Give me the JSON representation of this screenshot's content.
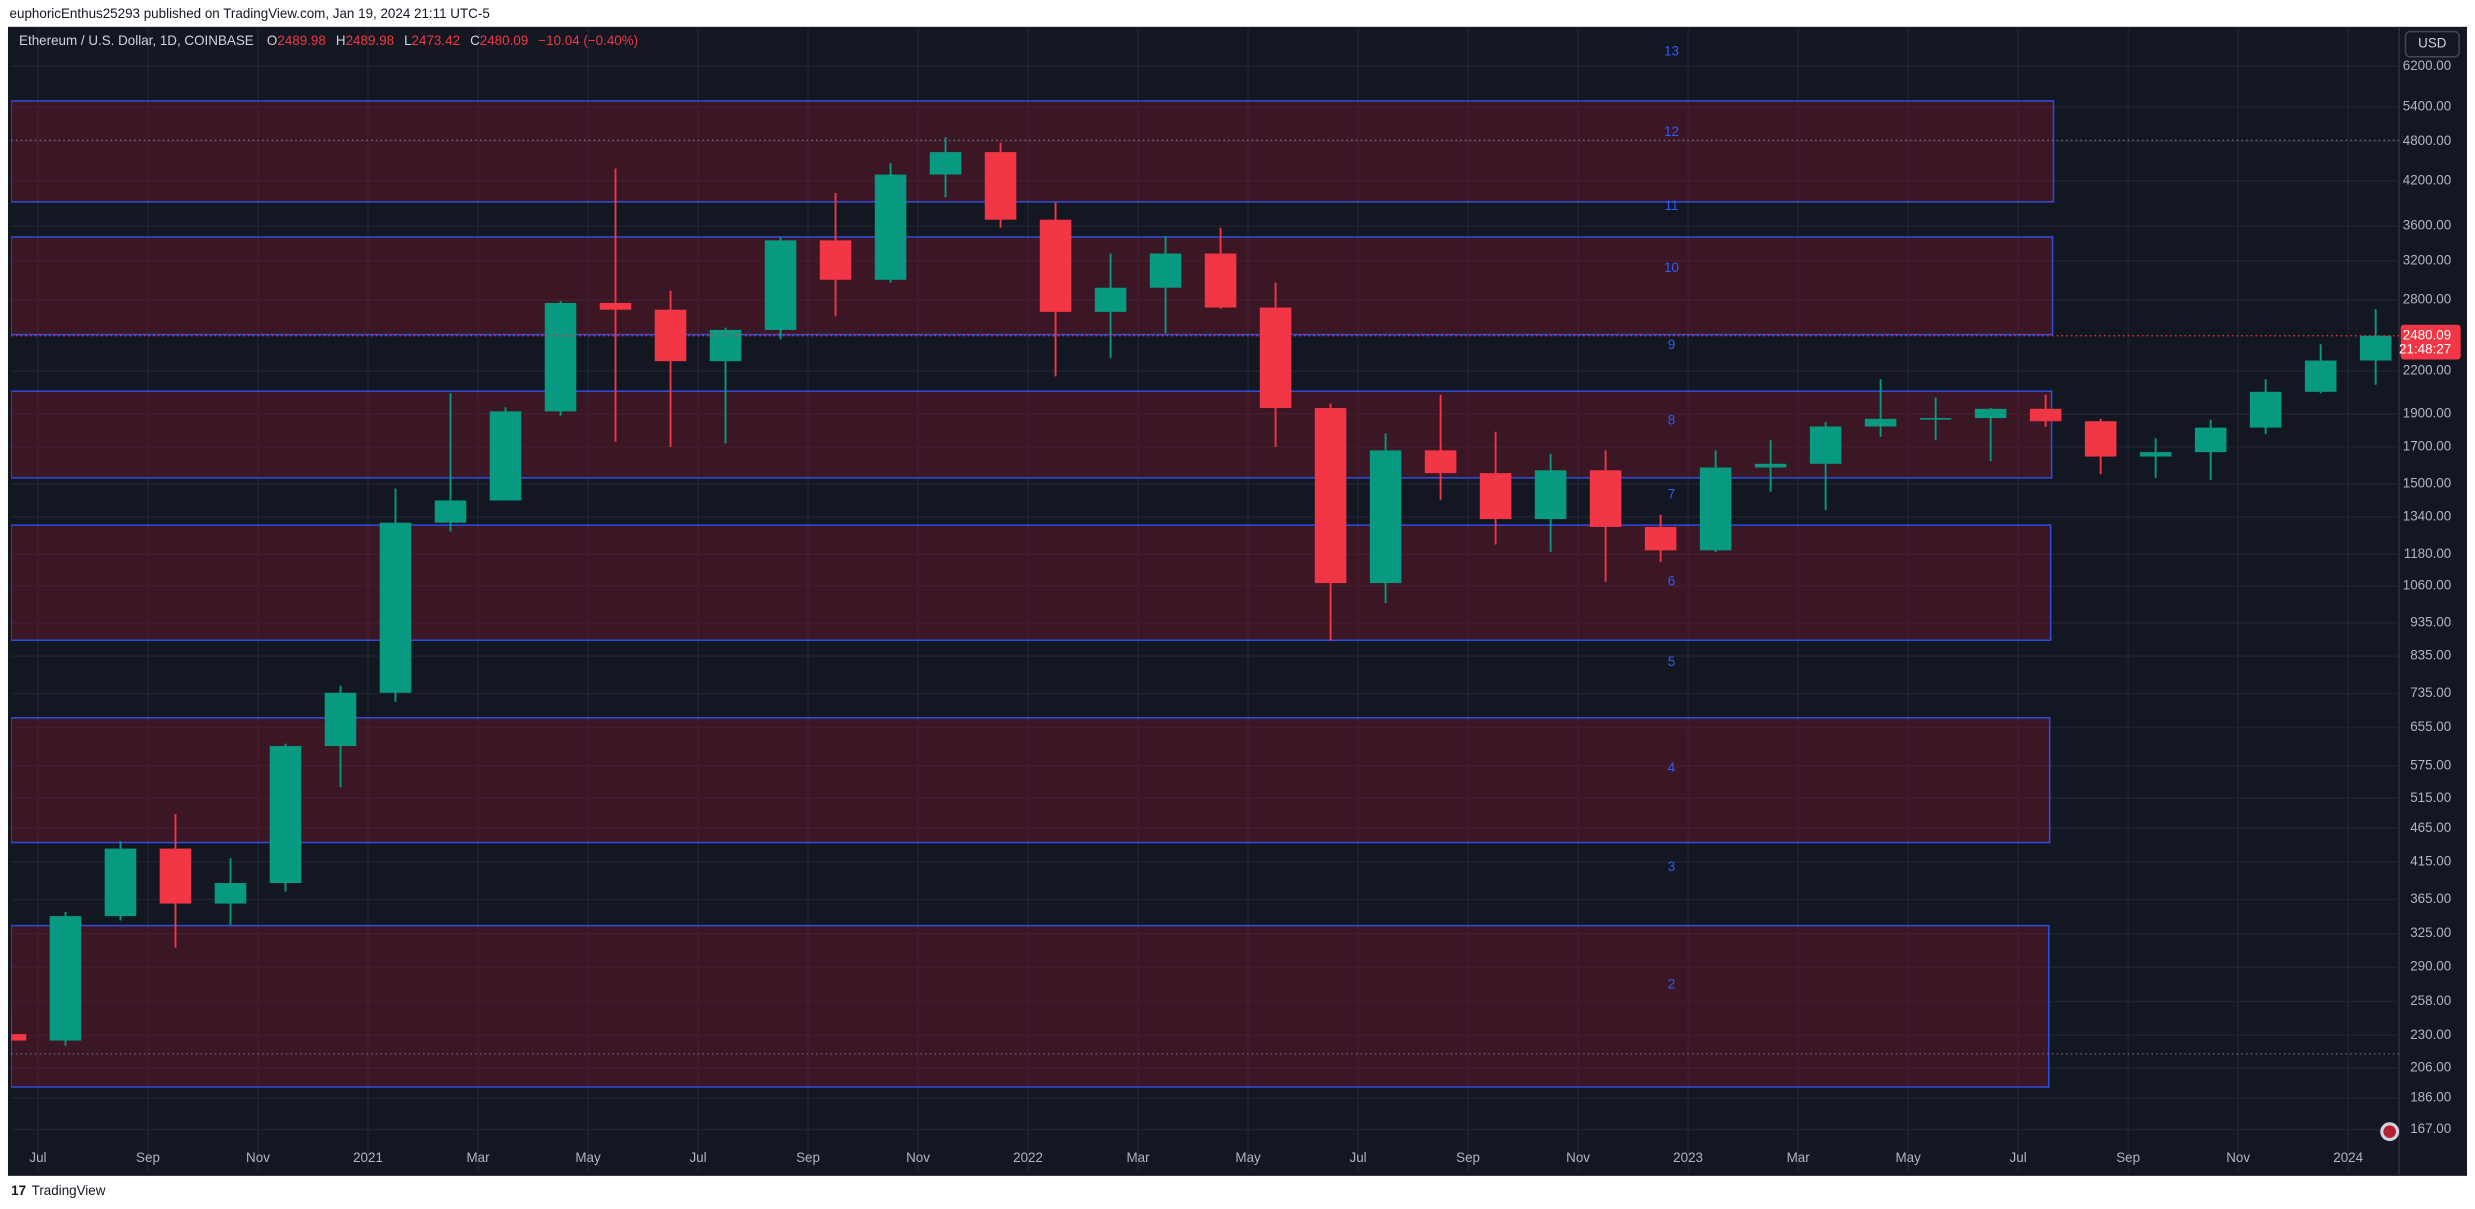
{
  "publisher_line": "euphoricEnthus25293 published on TradingView.com, Jan 19, 2024 21:11 UTC-5",
  "footer": "TradingView",
  "chart_data": {
    "type": "candlestick",
    "title": "Ethereum / U.S. Dollar, 1D, COINBASE",
    "legend": {
      "labels": [
        "O",
        "H",
        "L",
        "C"
      ],
      "values": [
        2489.98,
        2489.98,
        2473.42,
        2480.09
      ],
      "change": "−10.04 (−0.40%)"
    },
    "currency": "USD",
    "last_price": 2480.09,
    "last_price_label": "2480.09",
    "countdown": "21:48:27",
    "up_color": "#089981",
    "down_color": "#f23645",
    "log_scale": true,
    "grid": true,
    "x": [
      "2020-06",
      "2020-07",
      "2020-08",
      "2020-09",
      "2020-10",
      "2020-11",
      "2020-12",
      "2021-01",
      "2021-02",
      "2021-03",
      "2021-04",
      "2021-05",
      "2021-06",
      "2021-07",
      "2021-08",
      "2021-09",
      "2021-10",
      "2021-11",
      "2021-12",
      "2022-01",
      "2022-02",
      "2022-03",
      "2022-04",
      "2022-05",
      "2022-06",
      "2022-07",
      "2022-08",
      "2022-09",
      "2022-10",
      "2022-11",
      "2022-12",
      "2023-01",
      "2023-02",
      "2023-03",
      "2023-04",
      "2023-05",
      "2023-06",
      "2023-07",
      "2023-08",
      "2023-09",
      "2023-10",
      "2023-11",
      "2023-12",
      "2024-01"
    ],
    "open": [
      231,
      226,
      345,
      434,
      360,
      386,
      615,
      737,
      1314,
      1417,
      1918,
      2773,
      2710,
      2275,
      2530,
      3430,
      3000,
      4290,
      4630,
      3680,
      2690,
      2920,
      3280,
      2730,
      1940,
      1070,
      1680,
      1555,
      1330,
      1570,
      1295,
      1196,
      1585,
      1605,
      1822,
      1870,
      1875,
      1935,
      1855,
      1645,
      1670,
      1815,
      2050,
      2280
    ],
    "high": [
      250,
      350,
      445,
      488,
      420,
      620,
      755,
      1475,
      2040,
      1945,
      2790,
      4380,
      2890,
      2550,
      3470,
      4030,
      4460,
      4870,
      4780,
      3900,
      3280,
      3480,
      3580,
      2970,
      1970,
      1780,
      2030,
      1790,
      1660,
      1680,
      1350,
      1680,
      1740,
      1850,
      2140,
      2010,
      1940,
      2030,
      1870,
      1750,
      1865,
      2140,
      2410,
      2715
    ],
    "low": [
      215,
      222,
      340,
      310,
      335,
      375,
      535,
      715,
      1275,
      1420,
      1890,
      1730,
      1700,
      1720,
      2450,
      2650,
      2970,
      3970,
      3580,
      2160,
      2300,
      2500,
      2720,
      1700,
      880,
      1000,
      1420,
      1220,
      1190,
      1075,
      1150,
      1190,
      1460,
      1370,
      1760,
      1740,
      1620,
      1820,
      1550,
      1530,
      1520,
      1775,
      2040,
      2100
    ],
    "close": [
      226,
      345,
      434,
      360,
      386,
      615,
      737,
      1314,
      1417,
      1918,
      2773,
      2710,
      2275,
      2530,
      3430,
      3000,
      4290,
      4630,
      3680,
      2690,
      2920,
      3280,
      2730,
      1940,
      1070,
      1680,
      1555,
      1330,
      1570,
      1295,
      1196,
      1585,
      1605,
      1822,
      1870,
      1875,
      1935,
      1855,
      1645,
      1670,
      1815,
      2050,
      2280,
      2480.09
    ],
    "xticks": [
      {
        "value": "2020-07",
        "label": "Jul"
      },
      {
        "value": "2020-09",
        "label": "Sep"
      },
      {
        "value": "2020-11",
        "label": "Nov"
      },
      {
        "value": "2021-01",
        "label": "2021"
      },
      {
        "value": "2021-03",
        "label": "Mar"
      },
      {
        "value": "2021-05",
        "label": "May"
      },
      {
        "value": "2021-07",
        "label": "Jul"
      },
      {
        "value": "2021-09",
        "label": "Sep"
      },
      {
        "value": "2021-11",
        "label": "Nov"
      },
      {
        "value": "2022-01",
        "label": "2022"
      },
      {
        "value": "2022-03",
        "label": "Mar"
      },
      {
        "value": "2022-05",
        "label": "May"
      },
      {
        "value": "2022-07",
        "label": "Jul"
      },
      {
        "value": "2022-09",
        "label": "Sep"
      },
      {
        "value": "2022-11",
        "label": "Nov"
      },
      {
        "value": "2023-01",
        "label": "2023"
      },
      {
        "value": "2023-03",
        "label": "Mar"
      },
      {
        "value": "2023-05",
        "label": "May"
      },
      {
        "value": "2023-07",
        "label": "Jul"
      },
      {
        "value": "2023-09",
        "label": "Sep"
      },
      {
        "value": "2023-11",
        "label": "Nov"
      },
      {
        "value": "2024-01",
        "label": "2024"
      }
    ],
    "ylim": [
      145,
      7050
    ],
    "yticks": [
      {
        "value": 6200,
        "label": "6200.00"
      },
      {
        "value": 5400,
        "label": "5400.00"
      },
      {
        "value": 4800,
        "label": "4800.00"
      },
      {
        "value": 4200,
        "label": "4200.00"
      },
      {
        "value": 3600,
        "label": "3600.00"
      },
      {
        "value": 3200,
        "label": "3200.00"
      },
      {
        "value": 2800,
        "label": "2800.00"
      },
      {
        "value": 2200,
        "label": "2200.00"
      },
      {
        "value": 1900,
        "label": "1900.00"
      },
      {
        "value": 1700,
        "label": "1700.00"
      },
      {
        "value": 1500,
        "label": "1500.00"
      },
      {
        "value": 1340,
        "label": "1340.00"
      },
      {
        "value": 1180,
        "label": "1180.00"
      },
      {
        "value": 1060,
        "label": "1060.00"
      },
      {
        "value": 935,
        "label": "935.00"
      },
      {
        "value": 835,
        "label": "835.00"
      },
      {
        "value": 735,
        "label": "735.00"
      },
      {
        "value": 655,
        "label": "655.00"
      },
      {
        "value": 575,
        "label": "575.00"
      },
      {
        "value": 515,
        "label": "515.00"
      },
      {
        "value": 465,
        "label": "465.00"
      },
      {
        "value": 415,
        "label": "415.00"
      },
      {
        "value": 365,
        "label": "365.00"
      },
      {
        "value": 325,
        "label": "325.00"
      },
      {
        "value": 290,
        "label": "290.00"
      },
      {
        "value": 258,
        "label": "258.00"
      },
      {
        "value": 230,
        "label": "230.00"
      },
      {
        "value": 206,
        "label": "206.00"
      },
      {
        "value": 186,
        "label": "186.00"
      },
      {
        "value": 167,
        "label": "167.00"
      }
    ],
    "zones": [
      {
        "top": 5510,
        "bottom": 3910
      },
      {
        "top": 3470,
        "bottom": 2490
      },
      {
        "top": 2054,
        "bottom": 1530
      },
      {
        "top": 1303,
        "bottom": 881
      },
      {
        "top": 677,
        "bottom": 443
      },
      {
        "top": 334,
        "bottom": 193
      }
    ],
    "levels": [
      {
        "label": "13",
        "price": 6506
      },
      {
        "label": "12",
        "price": 4950
      },
      {
        "label": "11",
        "price": 3846
      },
      {
        "label": "10",
        "price": 3120
      },
      {
        "label": "9",
        "price": 2400
      },
      {
        "label": "8",
        "price": 1856
      },
      {
        "label": "7",
        "price": 1444
      },
      {
        "label": "6",
        "price": 1075
      },
      {
        "label": "5",
        "price": 817
      },
      {
        "label": "4",
        "price": 570
      },
      {
        "label": "3",
        "price": 407
      },
      {
        "label": "2",
        "price": 273
      }
    ],
    "reference_lines": [
      4820,
      216
    ]
  }
}
